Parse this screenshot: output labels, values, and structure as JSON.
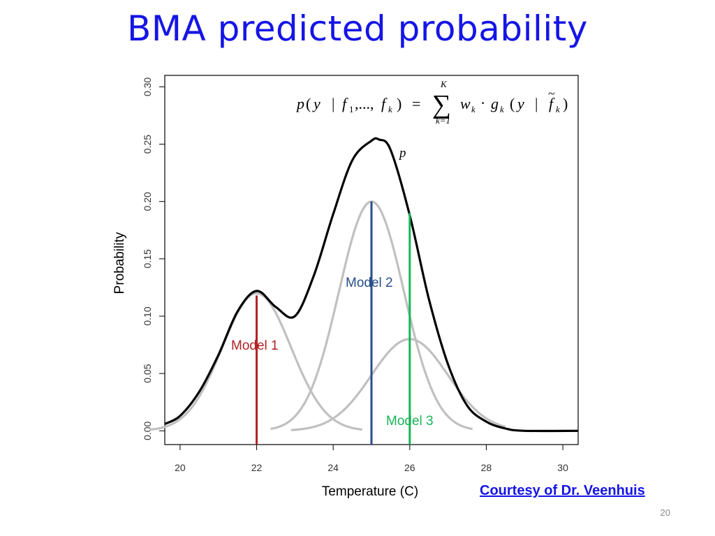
{
  "slide": {
    "title": "BMA predicted probability",
    "credit": "Courtesy of Dr. Veenhuis",
    "page_number": "20"
  },
  "chart_data": {
    "type": "line",
    "title": "",
    "xlabel": "Temperature (C)",
    "ylabel": "Probability",
    "xlim": [
      19.6,
      30.4
    ],
    "ylim": [
      -0.012,
      0.31
    ],
    "x_ticks": [
      20,
      22,
      24,
      26,
      28,
      30
    ],
    "y_ticks": [
      0.0,
      0.05,
      0.1,
      0.15,
      0.2,
      0.25,
      0.3
    ],
    "grid": false,
    "formula": "p(y | f1,..., fk) = Σ_{k=1}^{K} wk · gk(y | f̃k)",
    "components": [
      {
        "name": "Model 1",
        "forecast": 22.0,
        "peak": 0.12,
        "sd": 0.9,
        "color": "#c0c0c0",
        "line_color": "#b22222"
      },
      {
        "name": "Model 2",
        "forecast": 25.0,
        "peak": 0.2,
        "sd": 0.85,
        "color": "#c0c0c0",
        "line_color": "#2a4e8a"
      },
      {
        "name": "Model 3",
        "forecast": 26.0,
        "peak": 0.08,
        "sd": 1.0,
        "color": "#c0c0c0",
        "line_color": "#19b455"
      }
    ],
    "forecast_lines": [
      {
        "name": "Model 1",
        "x": 22.0,
        "top": 0.118,
        "color": "#b22222"
      },
      {
        "name": "Model 2",
        "x": 25.0,
        "top": 0.2,
        "color": "#2a4e8a"
      },
      {
        "name": "Model 3",
        "x": 26.0,
        "top": 0.19,
        "color": "#19b455"
      }
    ],
    "combined_label": "p",
    "combined_color": "#000000",
    "samples": {
      "combined_x": [
        19.6,
        20.0,
        20.5,
        21.0,
        21.5,
        22.0,
        22.5,
        23.0,
        23.5,
        24.0,
        24.5,
        25.0,
        25.2,
        25.5,
        26.0,
        26.5,
        27.0,
        27.5,
        28.0,
        28.5,
        29.0,
        30.4
      ],
      "combined_y": [
        0.006,
        0.013,
        0.034,
        0.066,
        0.104,
        0.122,
        0.108,
        0.1,
        0.136,
        0.189,
        0.236,
        0.253,
        0.254,
        0.245,
        0.188,
        0.115,
        0.058,
        0.022,
        0.008,
        0.002,
        0.0,
        0.0
      ]
    }
  },
  "labels": {
    "model1": "Model 1",
    "model2": "Model 2",
    "model3": "Model 3",
    "p": "p"
  },
  "formula_parts": {
    "lhs_p": "p",
    "lhs_open": "(",
    "lhs_y": "y",
    "bar": "|",
    "f": "f",
    "sub1": "1",
    "dots": ",...,",
    "sub_k": "k",
    "lhs_close": ")",
    "equals": "=",
    "sum": "∑",
    "sum_top": "K",
    "sum_bottom": "k=1",
    "w": "w",
    "dot": "·",
    "g": "g",
    "rhs_open": "(",
    "rhs_y": "y",
    "f_tilde": "f",
    "tilde": "~",
    "rhs_close": ")"
  }
}
